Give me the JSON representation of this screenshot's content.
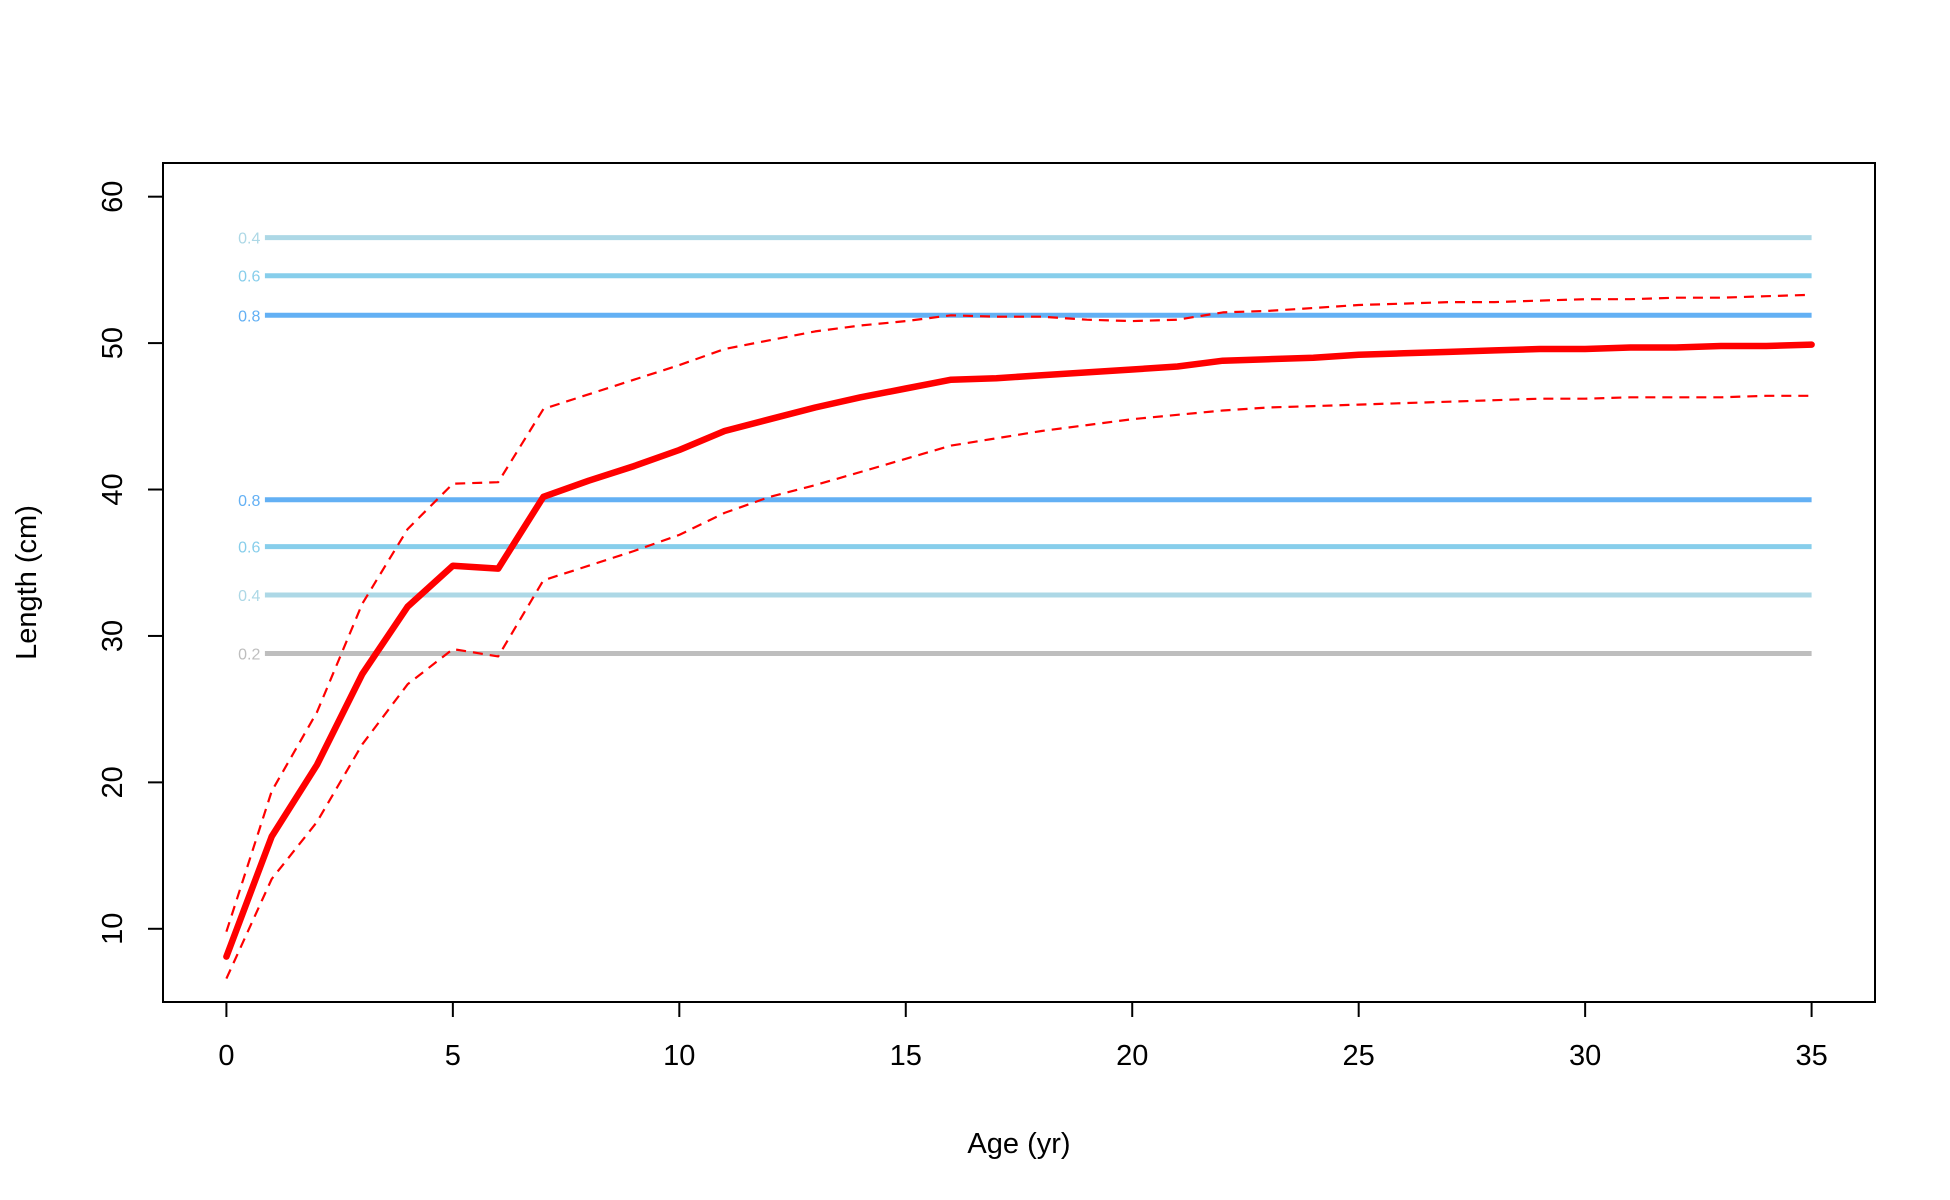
{
  "chart_data": {
    "type": "line",
    "title": "",
    "xlabel": "Age (yr)",
    "ylabel": "Length (cm)",
    "xlim": [
      -1.4,
      36.4
    ],
    "ylim": [
      5,
      62.3
    ],
    "xticks": [
      0,
      5,
      10,
      15,
      20,
      25,
      30,
      35
    ],
    "yticks": [
      10,
      20,
      30,
      40,
      50,
      60
    ],
    "grid": false,
    "legend": "none",
    "series": [
      {
        "style": "solid",
        "color": "#ff0000",
        "x": [
          0,
          1,
          2,
          3,
          4,
          5,
          6,
          7,
          8,
          9,
          10,
          11,
          12,
          13,
          14,
          15,
          16,
          17,
          18,
          19,
          20,
          21,
          22,
          23,
          24,
          25,
          26,
          27,
          28,
          29,
          30,
          31,
          32,
          33,
          34,
          35
        ],
        "y": [
          8.1,
          16.3,
          21.2,
          27.4,
          32.0,
          34.8,
          34.6,
          39.5,
          40.6,
          41.6,
          42.7,
          44.0,
          44.8,
          45.6,
          46.3,
          46.9,
          47.5,
          47.6,
          47.8,
          48.0,
          48.2,
          48.4,
          48.8,
          48.9,
          49.0,
          49.2,
          49.3,
          49.4,
          49.5,
          49.6,
          49.6,
          49.7,
          49.7,
          49.8,
          49.8,
          49.9
        ]
      },
      {
        "style": "dashed",
        "color": "#ff0000",
        "x": [
          0,
          1,
          2,
          3,
          4,
          5,
          6,
          7,
          8,
          9,
          10,
          11,
          12,
          13,
          14,
          15,
          16,
          17,
          18,
          19,
          20,
          21,
          22,
          23,
          24,
          25,
          26,
          27,
          28,
          29,
          30,
          31,
          32,
          33,
          34,
          35
        ],
        "y": [
          9.8,
          19.4,
          24.8,
          32.2,
          37.3,
          40.4,
          40.5,
          45.5,
          46.5,
          47.5,
          48.5,
          49.6,
          50.2,
          50.8,
          51.2,
          51.5,
          51.9,
          51.8,
          51.8,
          51.6,
          51.5,
          51.6,
          52.1,
          52.2,
          52.4,
          52.6,
          52.7,
          52.8,
          52.8,
          52.9,
          53.0,
          53.0,
          53.1,
          53.1,
          53.2,
          53.3
        ]
      },
      {
        "style": "dashed",
        "color": "#ff0000",
        "x": [
          0,
          1,
          2,
          3,
          4,
          5,
          6,
          7,
          8,
          9,
          10,
          11,
          12,
          13,
          14,
          15,
          16,
          17,
          18,
          19,
          20,
          21,
          22,
          23,
          24,
          25,
          26,
          27,
          28,
          29,
          30,
          31,
          32,
          33,
          34,
          35
        ],
        "y": [
          6.6,
          13.4,
          17.3,
          22.6,
          26.7,
          29.1,
          28.6,
          33.8,
          34.8,
          35.8,
          36.9,
          38.4,
          39.5,
          40.3,
          41.2,
          42.1,
          43.0,
          43.5,
          44.0,
          44.4,
          44.8,
          45.1,
          45.4,
          45.6,
          45.7,
          45.8,
          45.9,
          46.0,
          46.1,
          46.2,
          46.2,
          46.3,
          46.3,
          46.3,
          46.4,
          46.4
        ]
      }
    ],
    "hlines": [
      {
        "y": 57.2,
        "label": "0.4",
        "color": "#add8e6"
      },
      {
        "y": 54.6,
        "label": "0.6",
        "color": "#87ceeb"
      },
      {
        "y": 51.9,
        "label": "0.8",
        "color": "#63b0f4"
      },
      {
        "y": 39.3,
        "label": "0.8",
        "color": "#63b0f4"
      },
      {
        "y": 36.1,
        "label": "0.6",
        "color": "#87ceeb"
      },
      {
        "y": 32.8,
        "label": "0.4",
        "color": "#add8e6"
      },
      {
        "y": 28.8,
        "label": "0.2",
        "color": "#bebebe"
      }
    ]
  }
}
